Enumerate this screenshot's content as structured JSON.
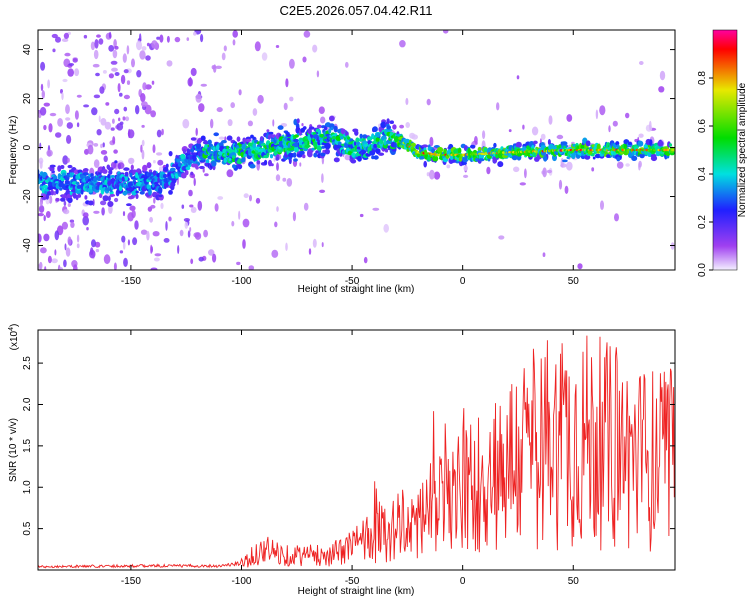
{
  "title": "C2E5.2026.057.04.42.R11",
  "chart_data": [
    {
      "type": "heatmap",
      "xlabel": "Height of straight line (km)",
      "ylabel": "Frequency (Hz)",
      "xlim": [
        -192,
        96
      ],
      "ylim": [
        -50,
        48
      ],
      "x_ticks": [
        -150,
        -100,
        -50,
        0,
        50
      ],
      "y_ticks": [
        -40,
        -20,
        0,
        20,
        40
      ],
      "ridge_x": [
        -190,
        -160,
        -135,
        -122,
        -100,
        -80,
        -60,
        -45,
        -35,
        -28,
        -20,
        -10,
        0,
        20,
        50,
        80,
        96
      ],
      "ridge_y": [
        -14,
        -15,
        -14,
        -3,
        -2,
        1,
        4,
        -1,
        4,
        3,
        -2,
        -3,
        -3,
        -2,
        -1,
        -1,
        -1
      ],
      "colorbar": {
        "label": "Normalized spectral amplitude",
        "range": [
          0,
          1
        ],
        "ticks": [
          "0.0",
          "0.2",
          "0.4",
          "0.6",
          "0.8"
        ],
        "tick_values": [
          0.0,
          0.2,
          0.4,
          0.6,
          0.8
        ],
        "colors": [
          "#f4f0ff",
          "#a040f0",
          "#2020ff",
          "#00e0e0",
          "#00dd00",
          "#e8e800",
          "#ff0000",
          "#ff00a0"
        ]
      }
    },
    {
      "type": "line",
      "xlabel": "Height of straight line (km)",
      "ylabel": "SNR (10 * v/v)",
      "scale_label": "(x10",
      "scale_exp": "4",
      "scale_close": ")",
      "xlim": [
        -192,
        96
      ],
      "ylim": [
        0,
        2.9
      ],
      "x_ticks": [
        -150,
        -100,
        -50,
        0,
        50
      ],
      "y_ticks": [
        "0.5",
        "1.0",
        "1.5",
        "2.0",
        "2.5"
      ],
      "y_tick_values": [
        0.5,
        1.0,
        1.5,
        2.0,
        2.5
      ],
      "series": [
        {
          "name": "SNR",
          "color": "#ee2222",
          "trend_x": [
            -192,
            -150,
            -110,
            -100,
            -90,
            -80,
            -60,
            -50,
            -40,
            -30,
            -20,
            -10,
            0,
            10,
            20,
            30,
            40,
            50,
            60,
            70,
            80,
            96
          ],
          "trend_y": [
            0.04,
            0.05,
            0.05,
            0.08,
            0.25,
            0.18,
            0.18,
            0.28,
            0.45,
            0.5,
            0.6,
            0.78,
            0.95,
            1.1,
            1.3,
            1.45,
            1.55,
            1.6,
            1.55,
            1.45,
            1.35,
            1.3
          ]
        }
      ]
    }
  ]
}
